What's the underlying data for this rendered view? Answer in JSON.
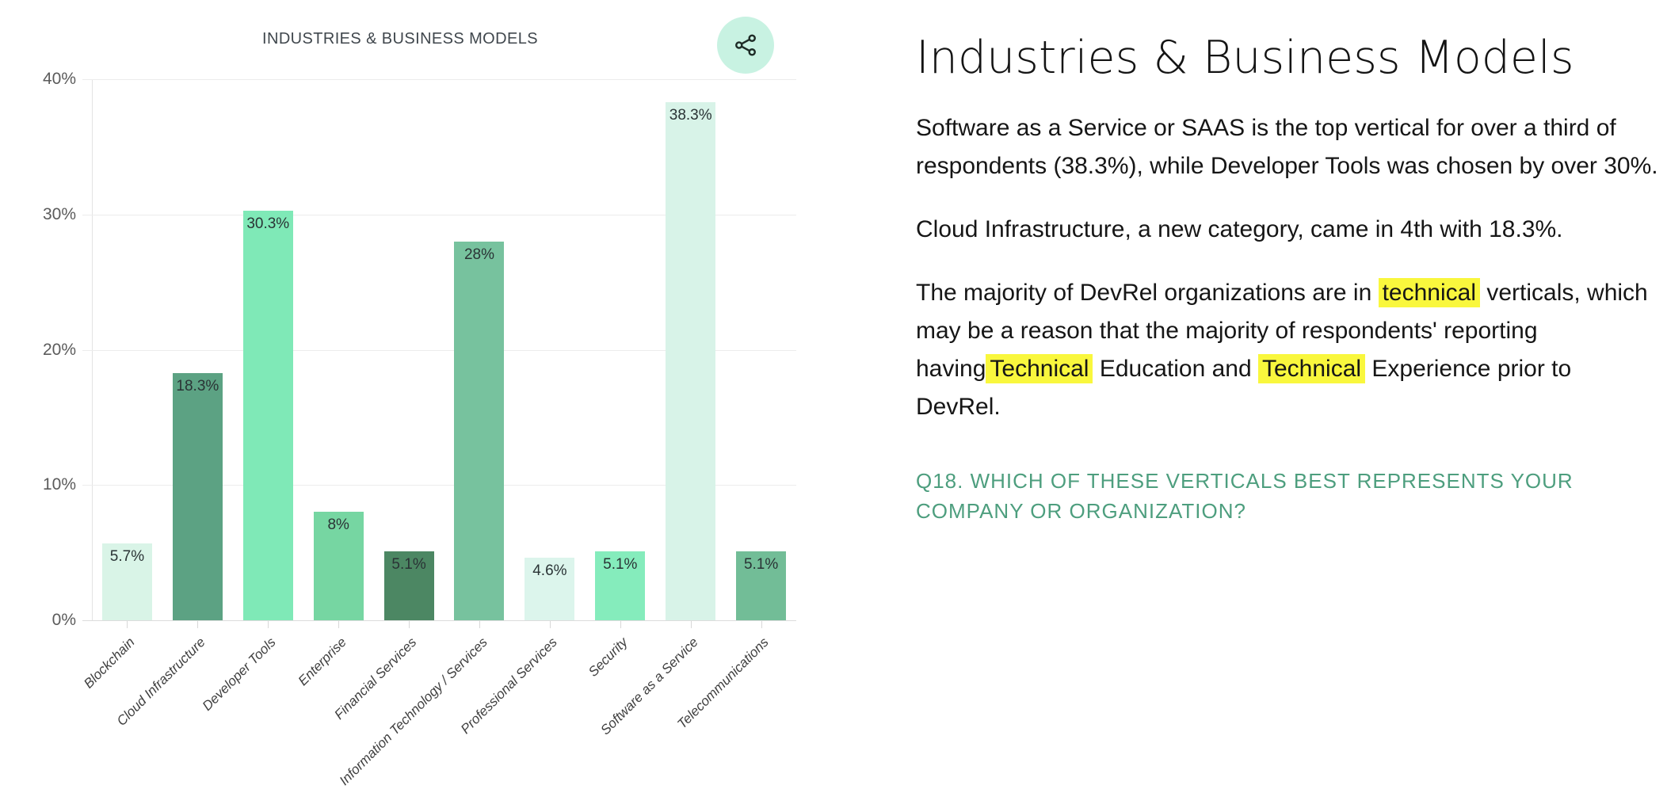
{
  "chart": {
    "title": "INDUSTRIES & BUSINESS MODELS",
    "share_button": {
      "icon": "share-nodes-icon",
      "bg_color": "#c8f2e2",
      "icon_color": "#1d2b26"
    },
    "y_ticks_top_to_bottom": [
      "40%",
      "30%",
      "20%",
      "10%",
      "0%"
    ]
  },
  "chart_data": {
    "type": "bar",
    "title": "INDUSTRIES & BUSINESS MODELS",
    "categories": [
      "Blockchain",
      "Cloud Infrastructure",
      "Developer Tools",
      "Enterprise",
      "Financial Services",
      "Information Technology / Services",
      "Professional Services",
      "Security",
      "Software as a Service",
      "Telecommunications"
    ],
    "values": [
      5.7,
      18.3,
      30.3,
      8,
      5.1,
      28,
      4.6,
      5.1,
      38.3,
      5.1
    ],
    "value_labels": [
      "5.7%",
      "18.3%",
      "30.3%",
      "8%",
      "5.1%",
      "28%",
      "4.6%",
      "5.1%",
      "38.3%",
      "5.1%"
    ],
    "bar_colors": [
      "#d9f4e7",
      "#5ca283",
      "#7fe9b7",
      "#76d6a2",
      "#4c8763",
      "#77c29e",
      "#dcf5ec",
      "#85ecbc",
      "#d8f3e8",
      "#72bd97"
    ],
    "xlabel": "",
    "ylabel": "",
    "ylim": [
      0,
      40
    ],
    "y_tick_labels": [
      "0%",
      "10%",
      "20%",
      "30%",
      "40%"
    ],
    "grid": true,
    "legend_position": "none"
  },
  "article": {
    "heading": "Industries & Business Models",
    "paragraphs": [
      {
        "segments": [
          {
            "text": "Software as a Service or SAAS is the top vertical for over a third of respondents (38.3%), while Developer Tools was chosen by over 30%.",
            "highlight": false
          }
        ]
      },
      {
        "segments": [
          {
            "text": "Cloud Infrastructure, a new category, came in 4th with 18.3%.",
            "highlight": false
          }
        ]
      },
      {
        "segments": [
          {
            "text": "The majority of DevRel organizations are in ",
            "highlight": false
          },
          {
            "text": "technical",
            "highlight": true
          },
          {
            "text": " verticals, which may be a reason that the majority of respondents' reporting having",
            "highlight": false
          },
          {
            "text": "Technical",
            "highlight": true
          },
          {
            "text": " Education and ",
            "highlight": false
          },
          {
            "text": "Technical",
            "highlight": true
          },
          {
            "text": " Experience prior to DevRel.",
            "highlight": false
          }
        ]
      }
    ],
    "question": "Q18. WHICH OF THESE VERTICALS BEST REPRESENTS YOUR COMPANY OR ORGANIZATION?",
    "highlight_color": "#f9f73d",
    "question_color": "#4d9e7e"
  }
}
